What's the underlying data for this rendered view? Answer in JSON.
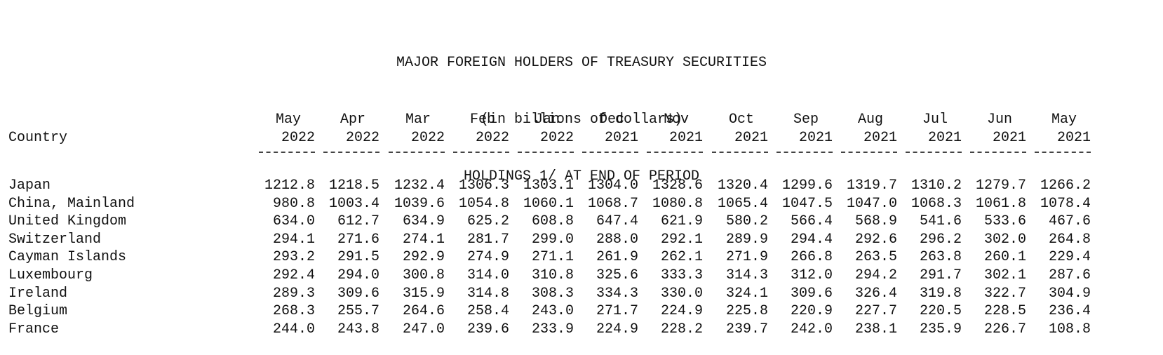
{
  "title": {
    "line1": "MAJOR FOREIGN HOLDERS OF TREASURY SECURITIES",
    "line2": "(in billions of dollars)",
    "line3": "HOLDINGS 1/ AT END OF PERIOD"
  },
  "table": {
    "country_header": "Country",
    "columns": [
      {
        "month": "May",
        "year": "2022"
      },
      {
        "month": "Apr",
        "year": "2022"
      },
      {
        "month": "Mar",
        "year": "2022"
      },
      {
        "month": "Feb",
        "year": "2022"
      },
      {
        "month": "Jan",
        "year": "2022"
      },
      {
        "month": "Dec",
        "year": "2021"
      },
      {
        "month": "Nov",
        "year": "2021"
      },
      {
        "month": "Oct",
        "year": "2021"
      },
      {
        "month": "Sep",
        "year": "2021"
      },
      {
        "month": "Aug",
        "year": "2021"
      },
      {
        "month": "Jul",
        "year": "2021"
      },
      {
        "month": "Jun",
        "year": "2021"
      },
      {
        "month": "May",
        "year": "2021"
      }
    ],
    "rows": [
      {
        "country": "Japan",
        "values": [
          "1212.8",
          "1218.5",
          "1232.4",
          "1306.3",
          "1303.1",
          "1304.0",
          "1328.6",
          "1320.4",
          "1299.6",
          "1319.7",
          "1310.2",
          "1279.7",
          "1266.2"
        ]
      },
      {
        "country": "China, Mainland",
        "values": [
          "980.8",
          "1003.4",
          "1039.6",
          "1054.8",
          "1060.1",
          "1068.7",
          "1080.8",
          "1065.4",
          "1047.5",
          "1047.0",
          "1068.3",
          "1061.8",
          "1078.4"
        ]
      },
      {
        "country": "United Kingdom",
        "values": [
          "634.0",
          "612.7",
          "634.9",
          "625.2",
          "608.8",
          "647.4",
          "621.9",
          "580.2",
          "566.4",
          "568.9",
          "541.6",
          "533.6",
          "467.6"
        ]
      },
      {
        "country": "Switzerland",
        "values": [
          "294.1",
          "271.6",
          "274.1",
          "281.7",
          "299.0",
          "288.0",
          "292.1",
          "289.9",
          "294.4",
          "292.6",
          "296.2",
          "302.0",
          "264.8"
        ]
      },
      {
        "country": "Cayman Islands",
        "values": [
          "293.2",
          "291.5",
          "292.9",
          "274.9",
          "271.1",
          "261.9",
          "262.1",
          "271.9",
          "266.8",
          "263.5",
          "263.8",
          "260.1",
          "229.4"
        ]
      },
      {
        "country": "Luxembourg",
        "values": [
          "292.4",
          "294.0",
          "300.8",
          "314.0",
          "310.8",
          "325.6",
          "333.3",
          "314.3",
          "312.0",
          "294.2",
          "291.7",
          "302.1",
          "287.6"
        ]
      },
      {
        "country": "Ireland",
        "values": [
          "289.3",
          "309.6",
          "315.9",
          "314.8",
          "308.3",
          "334.3",
          "330.0",
          "324.1",
          "309.6",
          "326.4",
          "319.8",
          "322.7",
          "304.9"
        ]
      },
      {
        "country": "Belgium",
        "values": [
          "268.3",
          "255.7",
          "264.6",
          "258.4",
          "243.0",
          "271.7",
          "224.9",
          "225.8",
          "220.9",
          "227.7",
          "220.5",
          "228.5",
          "236.4"
        ]
      },
      {
        "country": "France",
        "values": [
          "244.0",
          "243.8",
          "247.0",
          "239.6",
          "233.9",
          "224.9",
          "228.2",
          "239.7",
          "242.0",
          "238.1",
          "235.9",
          "226.7",
          "108.8"
        ]
      }
    ]
  }
}
